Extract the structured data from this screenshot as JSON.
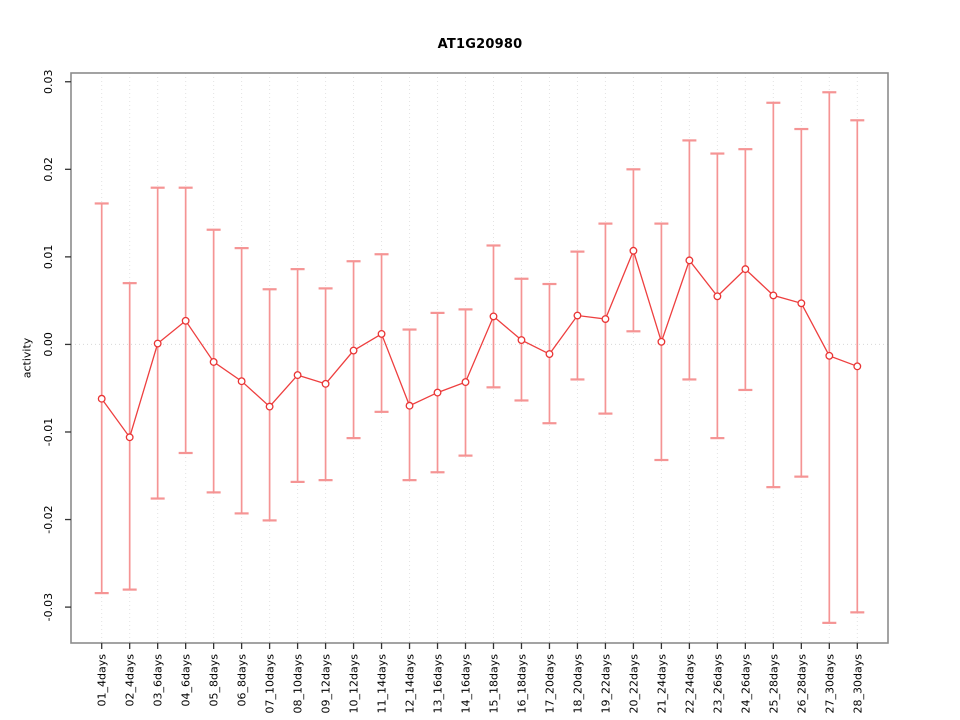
{
  "chart_data": {
    "type": "line",
    "title": "AT1G20980",
    "ylabel": "activity",
    "xlabel": "",
    "categories": [
      "01_4days",
      "02_4days",
      "03_6days",
      "04_6days",
      "05_8days",
      "06_8days",
      "07_10days",
      "08_10days",
      "09_12days",
      "10_12days",
      "11_14days",
      "12_14days",
      "13_16days",
      "14_16days",
      "15_18days",
      "16_18days",
      "17_20days",
      "18_20days",
      "19_22days",
      "20_22days",
      "21_24days",
      "22_24days",
      "23_26days",
      "24_26days",
      "25_28days",
      "26_28days",
      "27_30days",
      "28_30days"
    ],
    "series": [
      {
        "name": "activity",
        "values": [
          -0.0062,
          -0.0106,
          0.0001,
          0.0027,
          -0.002,
          -0.0042,
          -0.0071,
          -0.0035,
          -0.0045,
          -0.0007,
          0.0012,
          -0.007,
          -0.0055,
          -0.0043,
          0.0032,
          0.0005,
          -0.0011,
          0.0033,
          0.0029,
          0.0107,
          0.0003,
          0.0096,
          0.0055,
          0.0086,
          0.0056,
          0.0047,
          -0.0013,
          -0.0025
        ],
        "error_high": [
          0.0161,
          0.007,
          0.0179,
          0.0179,
          0.0131,
          0.011,
          0.0063,
          0.0086,
          0.0064,
          0.0095,
          0.0103,
          0.0017,
          0.0036,
          0.004,
          0.0113,
          0.0075,
          0.0069,
          0.0106,
          0.0138,
          0.02,
          0.0138,
          0.0233,
          0.0218,
          0.0223,
          0.0276,
          0.0246,
          0.0288,
          0.0256
        ],
        "error_low": [
          -0.0284,
          -0.028,
          -0.0176,
          -0.0124,
          -0.0169,
          -0.0193,
          -0.0201,
          -0.0157,
          -0.0155,
          -0.0107,
          -0.0077,
          -0.0155,
          -0.0146,
          -0.0127,
          -0.0049,
          -0.0064,
          -0.009,
          -0.004,
          -0.0079,
          0.0015,
          -0.0132,
          -0.004,
          -0.0107,
          -0.0052,
          -0.0163,
          -0.0151,
          -0.0318,
          -0.0306
        ]
      }
    ],
    "ylim": [
      -0.0341,
      0.031
    ],
    "yticks": [
      -0.03,
      -0.02,
      -0.01,
      0,
      0.01,
      0.02,
      0.03
    ],
    "ytick_labels": [
      "-0.03",
      "-0.02",
      "-0.01",
      "0.00",
      "0.01",
      "0.02",
      "0.03"
    ],
    "grid": {
      "vertical_dotted": true,
      "zero_line_dotted": true,
      "legend": "none"
    },
    "colors": {
      "line": "#ee3f3f",
      "point": "#e93434",
      "error_bar": "#f59494",
      "grid": "#e3e3e3",
      "zero_line": "#d8d8d8",
      "box": "#8c8c8c",
      "tick": "#333333",
      "text": "#000000"
    }
  }
}
